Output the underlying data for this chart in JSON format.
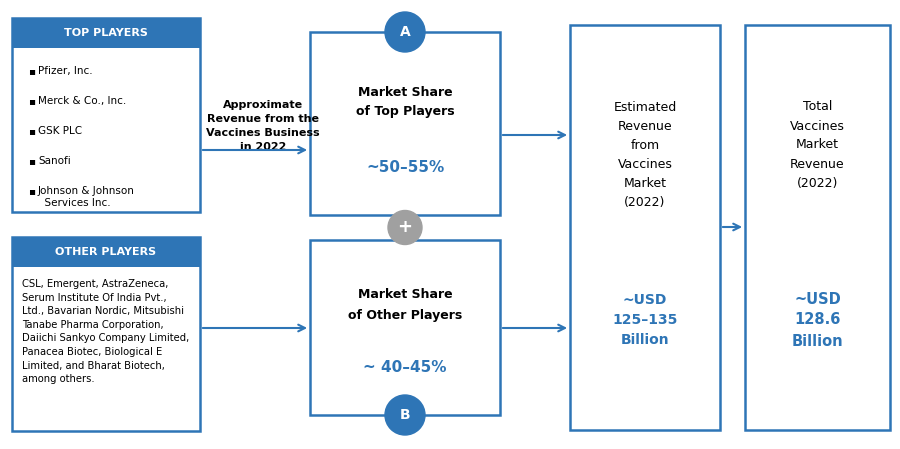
{
  "bg_color": "#ffffff",
  "border_color": "#2e75b6",
  "blue_header_color": "#2e75b6",
  "header_text_color": "#ffffff",
  "gray_circle_color": "#a0a0a0",
  "top_players_header": "TOP PLAYERS",
  "top_players_list": [
    "Pfizer, Inc.",
    "Merck & Co., Inc.",
    "GSK PLC",
    "Sanofi",
    "Johnson & Johnson\n  Services Inc."
  ],
  "other_players_header": "OTHER PLAYERS",
  "other_players_text": "CSL, Emergent, AstraZeneca,\nSerum Institute Of India Pvt.,\nLtd., Bavarian Nordic, Mitsubishi\nTanabe Pharma Corporation,\nDaiichi Sankyo Company Limited,\nPanacea Biotec, Biological E\nLimited, and Bharat Biotech,\namong others.",
  "approx_label": "Approximate\nRevenue from the\nVaccines Business\nin 2022",
  "box_a_line1": "Market Share",
  "box_a_line2": "of Top Players",
  "box_a_pct": "~50–55%",
  "box_b_line1": "Market Share",
  "box_b_line2": "of Other Players",
  "box_b_pct": "~ 40–45%",
  "estimated_line1": "Estimated",
  "estimated_line2": "Revenue",
  "estimated_line3": "from",
  "estimated_line4": "Vaccines",
  "estimated_line5": "Market",
  "estimated_line6": "(2022)",
  "estimated_value": "~USD\n125–135\nBillion",
  "total_line1": "Total",
  "total_line2": "Vaccines",
  "total_line3": "Market",
  "total_line4": "Revenue",
  "total_line5": "(2022)",
  "total_value": "~USD\n128.6\nBillion",
  "circle_a": "A",
  "circle_b": "B",
  "plus": "+"
}
